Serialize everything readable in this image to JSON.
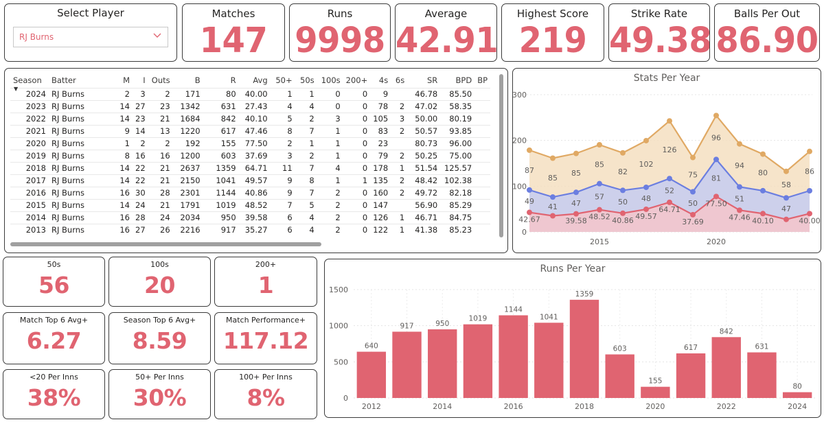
{
  "slicer": {
    "title": "Select Player",
    "selected": "RJ Burns"
  },
  "kpis": [
    {
      "label": "Matches",
      "value": "147"
    },
    {
      "label": "Runs",
      "value": "9998"
    },
    {
      "label": "Average",
      "value": "42.91"
    },
    {
      "label": "Highest Score",
      "value": "219"
    },
    {
      "label": "Strike Rate",
      "value": "49.38"
    },
    {
      "label": "Balls Per Out",
      "value": "86.90"
    }
  ],
  "small_kpis": [
    {
      "label": "50s",
      "value": "56"
    },
    {
      "label": "100s",
      "value": "20"
    },
    {
      "label": "200+",
      "value": "1"
    },
    {
      "label": "Match Top 6 Avg+",
      "value": "6.27"
    },
    {
      "label": "Season Top 6 Avg+",
      "value": "8.59"
    },
    {
      "label": "Match Performance+",
      "value": "117.12"
    },
    {
      "label": "<20 Per Inns",
      "value": "38%"
    },
    {
      "label": "50+ Per Inns",
      "value": "30%"
    },
    {
      "label": "100+ Per Inns",
      "value": "8%"
    }
  ],
  "table": {
    "columns": [
      "Season",
      "Batter",
      "M",
      "I",
      "Outs",
      "B",
      "R",
      "Avg",
      "50+",
      "50s",
      "100s",
      "200+",
      "4s",
      "6s",
      "SR",
      "BPD",
      "BP"
    ],
    "rows": [
      [
        "2024",
        "RJ Burns",
        "2",
        "3",
        "2",
        "171",
        "80",
        "40.00",
        "1",
        "1",
        "0",
        "0",
        "9",
        "",
        "46.78",
        "85.50",
        ""
      ],
      [
        "2023",
        "RJ Burns",
        "14",
        "27",
        "23",
        "1342",
        "631",
        "27.43",
        "4",
        "4",
        "0",
        "0",
        "78",
        "2",
        "47.02",
        "58.35",
        ""
      ],
      [
        "2022",
        "RJ Burns",
        "14",
        "23",
        "21",
        "1684",
        "842",
        "40.10",
        "5",
        "2",
        "3",
        "0",
        "105",
        "3",
        "50.00",
        "80.19",
        ""
      ],
      [
        "2021",
        "RJ Burns",
        "9",
        "14",
        "13",
        "1220",
        "617",
        "47.46",
        "8",
        "7",
        "1",
        "0",
        "83",
        "2",
        "50.57",
        "93.85",
        ""
      ],
      [
        "2020",
        "RJ Burns",
        "1",
        "2",
        "2",
        "192",
        "155",
        "77.50",
        "2",
        "1",
        "1",
        "0",
        "23",
        "",
        "80.73",
        "96.00",
        ""
      ],
      [
        "2019",
        "RJ Burns",
        "8",
        "16",
        "16",
        "1200",
        "603",
        "37.69",
        "3",
        "2",
        "1",
        "0",
        "79",
        "2",
        "50.25",
        "75.00",
        ""
      ],
      [
        "2018",
        "RJ Burns",
        "14",
        "22",
        "21",
        "2637",
        "1359",
        "64.71",
        "11",
        "7",
        "4",
        "0",
        "178",
        "1",
        "51.54",
        "125.57",
        ""
      ],
      [
        "2017",
        "RJ Burns",
        "14",
        "22",
        "21",
        "2150",
        "1041",
        "49.57",
        "9",
        "8",
        "1",
        "1",
        "135",
        "2",
        "48.42",
        "102.38",
        ""
      ],
      [
        "2016",
        "RJ Burns",
        "16",
        "30",
        "28",
        "2301",
        "1144",
        "40.86",
        "9",
        "7",
        "2",
        "0",
        "160",
        "2",
        "49.72",
        "82.18",
        ""
      ],
      [
        "2015",
        "RJ Burns",
        "14",
        "24",
        "21",
        "1791",
        "1019",
        "48.52",
        "7",
        "5",
        "2",
        "0",
        "147",
        "",
        "56.90",
        "85.29",
        ""
      ],
      [
        "2014",
        "RJ Burns",
        "16",
        "28",
        "24",
        "2034",
        "950",
        "39.58",
        "6",
        "4",
        "2",
        "0",
        "126",
        "1",
        "46.71",
        "84.75",
        ""
      ],
      [
        "2013",
        "RJ Burns",
        "16",
        "27",
        "26",
        "2216",
        "917",
        "35.27",
        "6",
        "4",
        "2",
        "0",
        "122",
        "1",
        "41.38",
        "85.23",
        ""
      ]
    ]
  },
  "chart_data": [
    {
      "type": "area",
      "title": "Stats Per Year",
      "x": [
        2012,
        2013,
        2014,
        2015,
        2016,
        2017,
        2018,
        2019,
        2020,
        2021,
        2022,
        2023,
        2024
      ],
      "xticks": [
        "2015",
        "2020"
      ],
      "xtick_values": [
        2015,
        2020
      ],
      "ylim": [
        0,
        300
      ],
      "yticks": [
        "0",
        "100",
        "200",
        "300"
      ],
      "ytick_values": [
        0,
        100,
        200,
        300
      ],
      "series": [
        {
          "name": "Average",
          "color": "#e06471",
          "fill": "#f4c5cb",
          "values": [
            42.67,
            35.27,
            39.58,
            48.52,
            40.86,
            49.57,
            64.71,
            37.69,
            77.5,
            47.46,
            40.1,
            27.43,
            40.0
          ],
          "labels": [
            "42.67",
            "",
            "39.58",
            "48.52",
            "40.86",
            "49.57",
            "64.71",
            "37.69",
            "77.50",
            "47.46",
            "40.10",
            "",
            "40.00"
          ]
        },
        {
          "name": "Strike Rate",
          "color": "#6b7ee0",
          "fill": "#c6cdf1",
          "values": [
            49,
            41,
            47,
            57,
            50,
            48,
            52,
            50,
            81,
            51,
            50,
            47,
            50
          ],
          "labels": [
            "49",
            "41",
            "47",
            "57",
            "50",
            "48",
            "52",
            "50",
            "81",
            "51",
            "",
            "47",
            ""
          ]
        },
        {
          "name": "Balls Per Dismissal",
          "color": "#e0a964",
          "fill": "#f5dfc1",
          "values": [
            87,
            85,
            85,
            85,
            82,
            102,
            126,
            75,
            96,
            94,
            80,
            58,
            86
          ],
          "labels": [
            "87",
            "85",
            "85",
            "85",
            "82",
            "102",
            "126",
            "75",
            "96",
            "94",
            "80",
            "58",
            "86"
          ]
        }
      ]
    },
    {
      "type": "bar",
      "title": "Runs Per Year",
      "categories": [
        "2012",
        "2013",
        "2014",
        "2015",
        "2016",
        "2017",
        "2018",
        "2019",
        "2020",
        "2021",
        "2022",
        "2023",
        "2024"
      ],
      "values": [
        640,
        917,
        950,
        1019,
        1144,
        1041,
        1359,
        603,
        155,
        617,
        842,
        631,
        80
      ],
      "xticks": [
        "2012",
        "2014",
        "2016",
        "2018",
        "2020",
        "2022",
        "2024"
      ],
      "ylim": [
        0,
        1500
      ],
      "yticks": [
        "0",
        "500",
        "1000",
        "1500"
      ],
      "ytick_values": [
        0,
        500,
        1000,
        1500
      ],
      "color": "#e06471"
    }
  ]
}
